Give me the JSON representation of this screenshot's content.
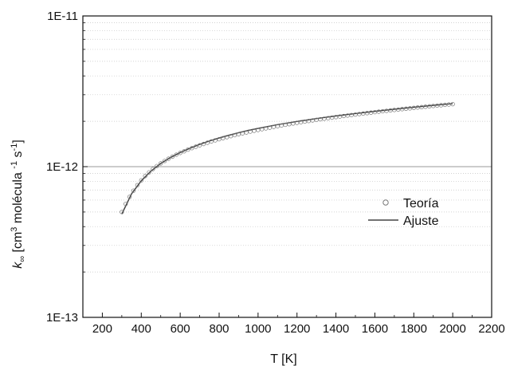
{
  "chart_data": {
    "type": "scatter",
    "xlabel": "T [K]",
    "ylabel": "k∞ [cm³ molécula⁻¹ s⁻¹]",
    "ylabel_parts": {
      "k": "k",
      "sub": "∞",
      "unit_a": " [cm",
      "sup1": "3",
      "unit_b": " molécula ",
      "sup2": "-1",
      "unit_c": " s",
      "sup3": "-1",
      "unit_d": "]"
    },
    "x_ticks": [
      "200",
      "400",
      "600",
      "800",
      "1000",
      "1200",
      "1400",
      "1600",
      "1800",
      "2000",
      "2200"
    ],
    "y_ticks": [
      "1E-13",
      "1E-12",
      "1E-11"
    ],
    "xlim": [
      100,
      2200
    ],
    "ylim": [
      1e-13,
      1e-11
    ],
    "yscale": "log",
    "grid": "minor y dotted, major y solid",
    "legend_position": "right-center",
    "series": [
      {
        "name": "Teoría",
        "style": "open-circles",
        "color": "#777777",
        "x": [
          300,
          320,
          340,
          360,
          380,
          400,
          420,
          440,
          460,
          480,
          500,
          520,
          540,
          560,
          580,
          600,
          620,
          640,
          660,
          680,
          700,
          720,
          740,
          760,
          780,
          800,
          820,
          840,
          860,
          880,
          900,
          920,
          940,
          960,
          980,
          1000,
          1020,
          1040,
          1060,
          1080,
          1100,
          1120,
          1140,
          1160,
          1180,
          1200,
          1220,
          1240,
          1260,
          1280,
          1300,
          1320,
          1340,
          1360,
          1380,
          1400,
          1420,
          1440,
          1460,
          1480,
          1500,
          1520,
          1540,
          1560,
          1580,
          1600,
          1620,
          1640,
          1660,
          1680,
          1700,
          1720,
          1740,
          1760,
          1780,
          1800,
          1820,
          1840,
          1860,
          1880,
          1900,
          1920,
          1940,
          1960,
          1980,
          2000
        ],
        "y": [
          5e-13,
          5.66e-13,
          6.3e-13,
          6.93e-13,
          7.54e-13,
          8.12e-13,
          8.66e-13,
          9.17e-13,
          9.64e-13,
          1.009e-12,
          1.051e-12,
          1.091e-12,
          1.129e-12,
          1.165e-12,
          1.2e-12,
          1.233e-12,
          1.265e-12,
          1.297e-12,
          1.327e-12,
          1.357e-12,
          1.386e-12,
          1.414e-12,
          1.442e-12,
          1.469e-12,
          1.495e-12,
          1.52e-12,
          1.545e-12,
          1.57e-12,
          1.594e-12,
          1.618e-12,
          1.641e-12,
          1.664e-12,
          1.687e-12,
          1.709e-12,
          1.731e-12,
          1.752e-12,
          1.773e-12,
          1.794e-12,
          1.815e-12,
          1.835e-12,
          1.855e-12,
          1.875e-12,
          1.895e-12,
          1.914e-12,
          1.934e-12,
          1.953e-12,
          1.972e-12,
          1.99e-12,
          2.009e-12,
          2.027e-12,
          2.045e-12,
          2.063e-12,
          2.081e-12,
          2.099e-12,
          2.116e-12,
          2.133e-12,
          2.151e-12,
          2.168e-12,
          2.185e-12,
          2.201e-12,
          2.218e-12,
          2.235e-12,
          2.251e-12,
          2.267e-12,
          2.284e-12,
          2.3e-12,
          2.316e-12,
          2.331e-12,
          2.347e-12,
          2.363e-12,
          2.378e-12,
          2.394e-12,
          2.409e-12,
          2.424e-12,
          2.439e-12,
          2.454e-12,
          2.469e-12,
          2.484e-12,
          2.499e-12,
          2.514e-12,
          2.528e-12,
          2.543e-12,
          2.557e-12,
          2.572e-12,
          2.586e-12,
          2.6e-12
        ]
      },
      {
        "name": "Ajuste",
        "style": "line",
        "color": "#444444",
        "x": [
          300,
          350,
          400,
          450,
          500,
          550,
          600,
          650,
          700,
          750,
          800,
          850,
          900,
          950,
          1000,
          1100,
          1200,
          1300,
          1400,
          1500,
          1600,
          1700,
          1800,
          1900,
          2000
        ],
        "y": [
          4.85e-13,
          6.6e-13,
          8.05e-13,
          9.35e-13,
          1.05e-12,
          1.15e-12,
          1.24e-12,
          1.325e-12,
          1.405e-12,
          1.48e-12,
          1.55e-12,
          1.615e-12,
          1.68e-12,
          1.74e-12,
          1.795e-12,
          1.9e-12,
          1.995e-12,
          2.085e-12,
          2.17e-12,
          2.25e-12,
          2.33e-12,
          2.405e-12,
          2.48e-12,
          2.55e-12,
          2.62e-12
        ]
      }
    ]
  }
}
